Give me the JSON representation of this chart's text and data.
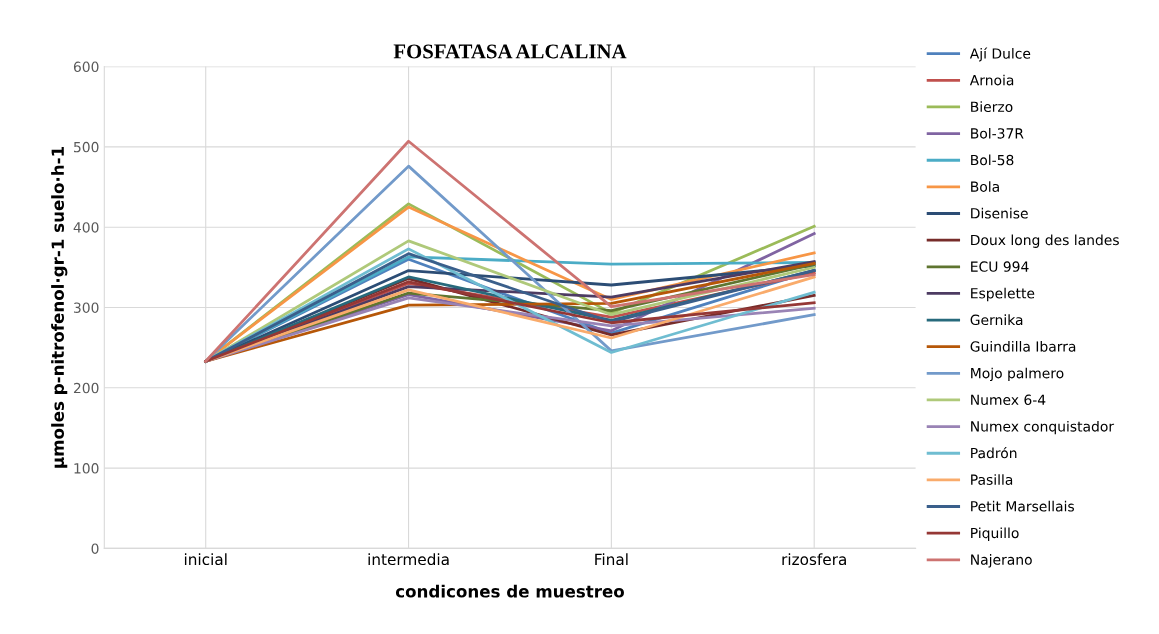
{
  "chart_data": {
    "type": "line",
    "title": "FOSFATASA ALCALINA",
    "xlabel": "condicones de muestreo",
    "ylabel": "µmoles p-nitrofenol·gr-1 suelo·h-1",
    "categories": [
      "inicial",
      "intermedia",
      "Final",
      "rizosfera"
    ],
    "ylim": [
      0,
      600
    ],
    "yticks": [
      0,
      100,
      200,
      300,
      400,
      500,
      600
    ],
    "grid": true,
    "legend": "right",
    "marker": "none",
    "line_style": "solid",
    "series": [
      {
        "name": "Ají Dulce",
        "color": "#4f81bd",
        "values": [
          233,
          360,
          268,
          346
        ]
      },
      {
        "name": "Arnoia",
        "color": "#c0504d",
        "values": [
          233,
          330,
          288,
          343
        ]
      },
      {
        "name": "Bierzo",
        "color": "#9bbb59",
        "values": [
          233,
          429,
          293,
          401
        ]
      },
      {
        "name": "Bol-37R",
        "color": "#8064a2",
        "values": [
          233,
          316,
          271,
          392
        ]
      },
      {
        "name": "Bol-58",
        "color": "#4bacc6",
        "values": [
          233,
          363,
          354,
          356
        ]
      },
      {
        "name": "Bola",
        "color": "#f79646",
        "values": [
          233,
          425,
          310,
          368
        ]
      },
      {
        "name": "Disenise",
        "color": "#2c4d75",
        "values": [
          233,
          346,
          328,
          352
        ]
      },
      {
        "name": "Doux long des landes",
        "color": "#772c2a",
        "values": [
          233,
          336,
          266,
          315
        ]
      },
      {
        "name": "ECU 994",
        "color": "#5f7530",
        "values": [
          233,
          318,
          296,
          354
        ]
      },
      {
        "name": "Espelette",
        "color": "#4d3b62",
        "values": [
          233,
          326,
          313,
          357
        ]
      },
      {
        "name": "Gernika",
        "color": "#276a7c",
        "values": [
          233,
          338,
          284,
          346
        ]
      },
      {
        "name": "Guindilla Ibarra",
        "color": "#b65708",
        "values": [
          233,
          303,
          305,
          355
        ]
      },
      {
        "name": "Mojo palmero",
        "color": "#729aca",
        "values": [
          233,
          476,
          246,
          291
        ]
      },
      {
        "name": "Numex 6-4",
        "color": "#afc97a",
        "values": [
          233,
          383,
          291,
          350
        ]
      },
      {
        "name": "Numex conquistador",
        "color": "#9983b5",
        "values": [
          233,
          312,
          277,
          299
        ]
      },
      {
        "name": "Padrón",
        "color": "#6fbdd1",
        "values": [
          233,
          373,
          244,
          319
        ]
      },
      {
        "name": "Pasilla",
        "color": "#f9ab6b",
        "values": [
          233,
          322,
          262,
          338
        ]
      },
      {
        "name": "Petit Marsellais",
        "color": "#3a5f8b",
        "values": [
          233,
          367,
          282,
          346
        ]
      },
      {
        "name": "Piquillo",
        "color": "#953735",
        "values": [
          233,
          332,
          281,
          306
        ]
      },
      {
        "name": "Najerano",
        "color": "#cd7371",
        "values": [
          233,
          507,
          301,
          341
        ]
      }
    ]
  }
}
